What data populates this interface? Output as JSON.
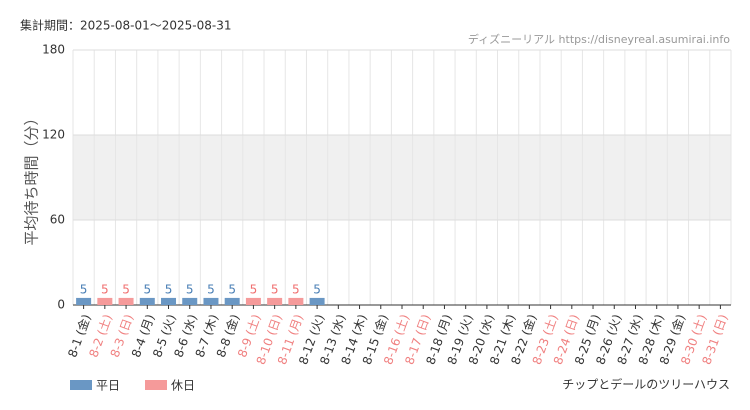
{
  "chart_data": {
    "type": "bar",
    "title": "集計期間：2025-08-01〜2025-08-31",
    "source": "ディズニーリアル https://disneyreal.asumirai.info",
    "attraction": "チップとデールのツリーハウス",
    "y_label": "平均待ち時間（分）",
    "categories": [
      "8-1 (金)",
      "8-2 (土)",
      "8-3 (日)",
      "8-4 (月)",
      "8-5 (火)",
      "8-6 (水)",
      "8-7 (木)",
      "8-8 (金)",
      "8-9 (土)",
      "8-10 (日)",
      "8-11 (月)",
      "8-12 (火)",
      "8-13 (水)",
      "8-14 (木)",
      "8-15 (金)",
      "8-16 (土)",
      "8-17 (日)",
      "8-18 (月)",
      "8-19 (火)",
      "8-20 (水)",
      "8-21 (木)",
      "8-22 (金)",
      "8-23 (土)",
      "8-24 (日)",
      "8-25 (月)",
      "8-26 (火)",
      "8-27 (水)",
      "8-28 (木)",
      "8-29 (金)",
      "8-30 (土)",
      "8-31 (日)"
    ],
    "category_colors": [
      "#333",
      "#f08080",
      "#f08080",
      "#333",
      "#333",
      "#333",
      "#333",
      "#333",
      "#f08080",
      "#f08080",
      "#f08080",
      "#333",
      "#333",
      "#333",
      "#333",
      "#f08080",
      "#f08080",
      "#333",
      "#333",
      "#333",
      "#333",
      "#333",
      "#f08080",
      "#f08080",
      "#333",
      "#333",
      "#333",
      "#333",
      "#333",
      "#f08080",
      "#f08080"
    ],
    "series": [
      {
        "name": "平日",
        "color": "#6a97c4",
        "label_color": "#4a7fb5",
        "values": [
          5,
          null,
          null,
          5,
          5,
          5,
          5,
          5,
          null,
          null,
          null,
          5,
          null,
          null,
          null,
          null,
          null,
          null,
          null,
          null,
          null,
          null,
          null,
          null,
          null,
          null,
          null,
          null,
          null,
          null,
          null
        ]
      },
      {
        "name": "休日",
        "color": "#f59a9a",
        "label_color": "#f07070",
        "values": [
          null,
          5,
          5,
          null,
          null,
          null,
          null,
          null,
          5,
          5,
          5,
          null,
          null,
          null,
          null,
          null,
          null,
          null,
          null,
          null,
          null,
          null,
          null,
          null,
          null,
          null,
          null,
          null,
          null,
          null,
          null
        ]
      }
    ],
    "ylim": [
      0,
      180
    ],
    "yticks": [
      0,
      60,
      120,
      180
    ],
    "grid": true
  }
}
